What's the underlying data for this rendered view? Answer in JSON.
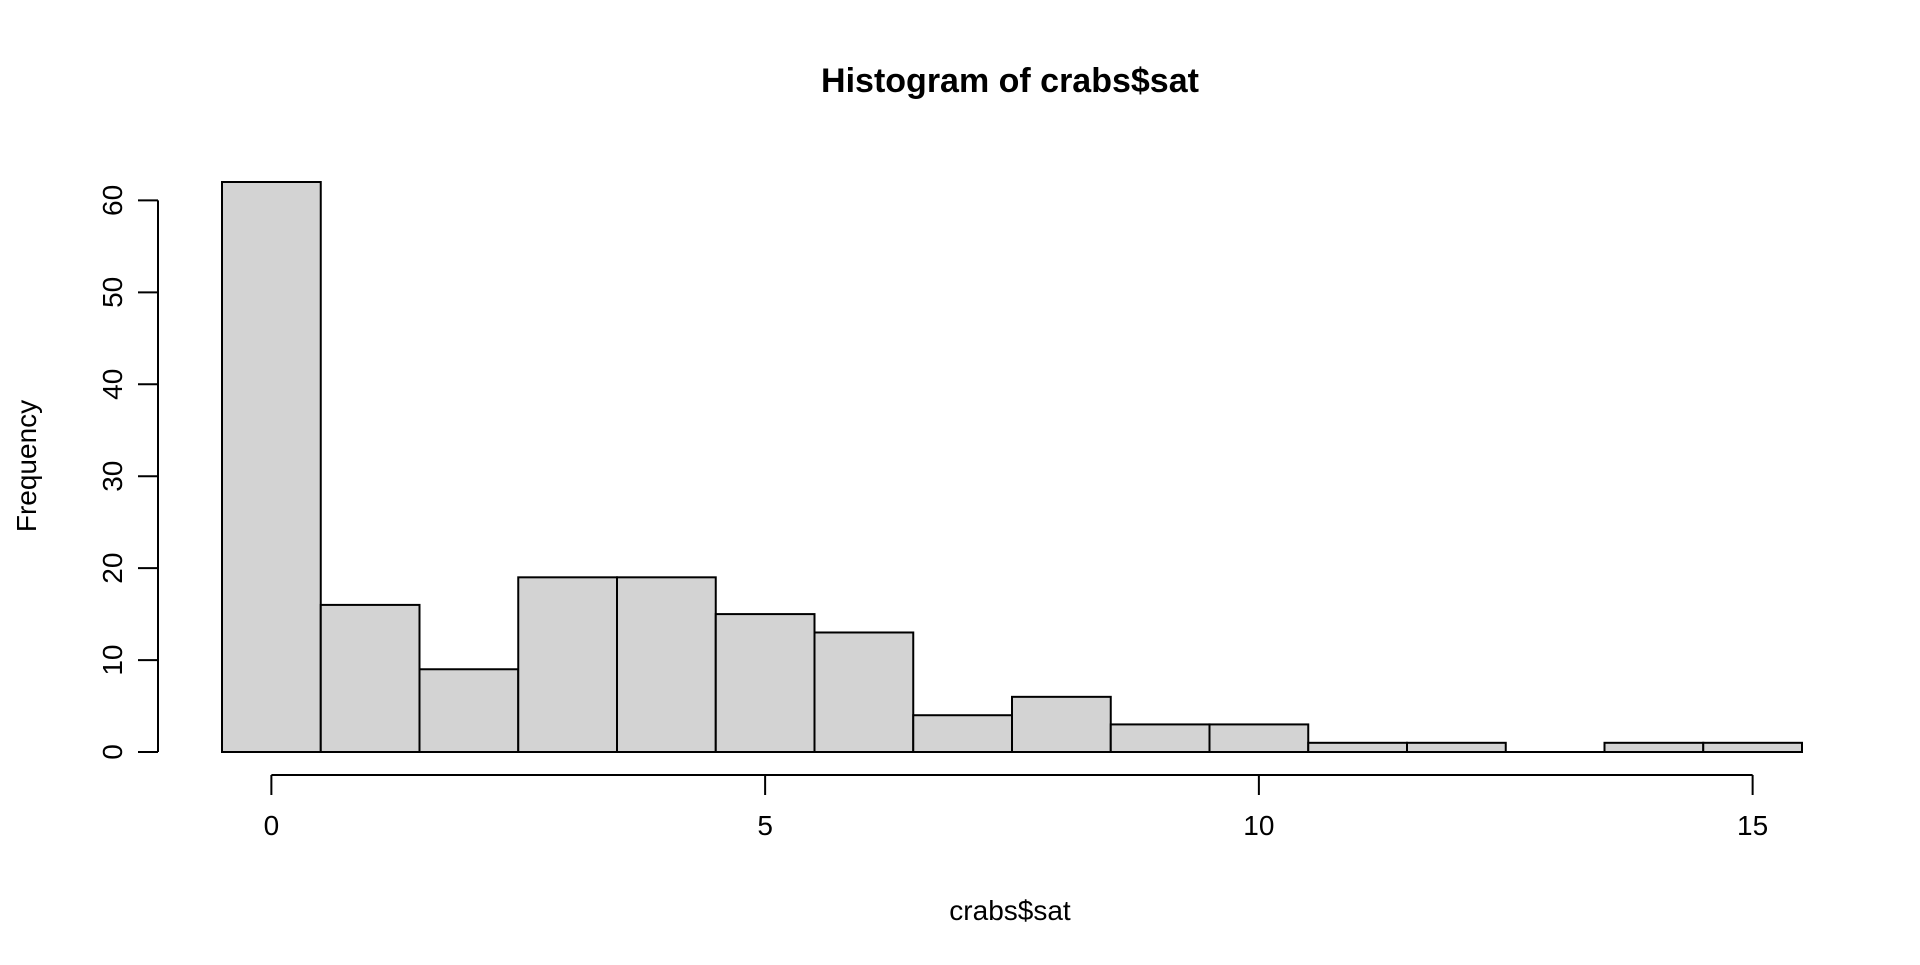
{
  "chart_data": {
    "type": "bar",
    "title": "Histogram of crabs$sat",
    "xlabel": "crabs$sat",
    "ylabel": "Frequency",
    "bins": [
      {
        "from": -0.5,
        "to": 0.5,
        "count": 62
      },
      {
        "from": 0.5,
        "to": 1.5,
        "count": 16
      },
      {
        "from": 1.5,
        "to": 2.5,
        "count": 9
      },
      {
        "from": 2.5,
        "to": 3.5,
        "count": 19
      },
      {
        "from": 3.5,
        "to": 4.5,
        "count": 19
      },
      {
        "from": 4.5,
        "to": 5.5,
        "count": 15
      },
      {
        "from": 5.5,
        "to": 6.5,
        "count": 13
      },
      {
        "from": 6.5,
        "to": 7.5,
        "count": 4
      },
      {
        "from": 7.5,
        "to": 8.5,
        "count": 6
      },
      {
        "from": 8.5,
        "to": 9.5,
        "count": 3
      },
      {
        "from": 9.5,
        "to": 10.5,
        "count": 3
      },
      {
        "from": 10.5,
        "to": 11.5,
        "count": 1
      },
      {
        "from": 11.5,
        "to": 12.5,
        "count": 1
      },
      {
        "from": 12.5,
        "to": 13.5,
        "count": 0
      },
      {
        "from": 13.5,
        "to": 14.5,
        "count": 1
      },
      {
        "from": 14.5,
        "to": 15.5,
        "count": 1
      }
    ],
    "xlim": [
      -0.5,
      15.5
    ],
    "ylim": [
      0,
      62
    ],
    "x_ticks": [
      0,
      5,
      10,
      15
    ],
    "y_ticks": [
      0,
      10,
      20,
      30,
      40,
      50,
      60
    ],
    "bar_fill": "#d3d3d3",
    "bar_stroke": "#000000",
    "grid": false,
    "legend": "none"
  }
}
